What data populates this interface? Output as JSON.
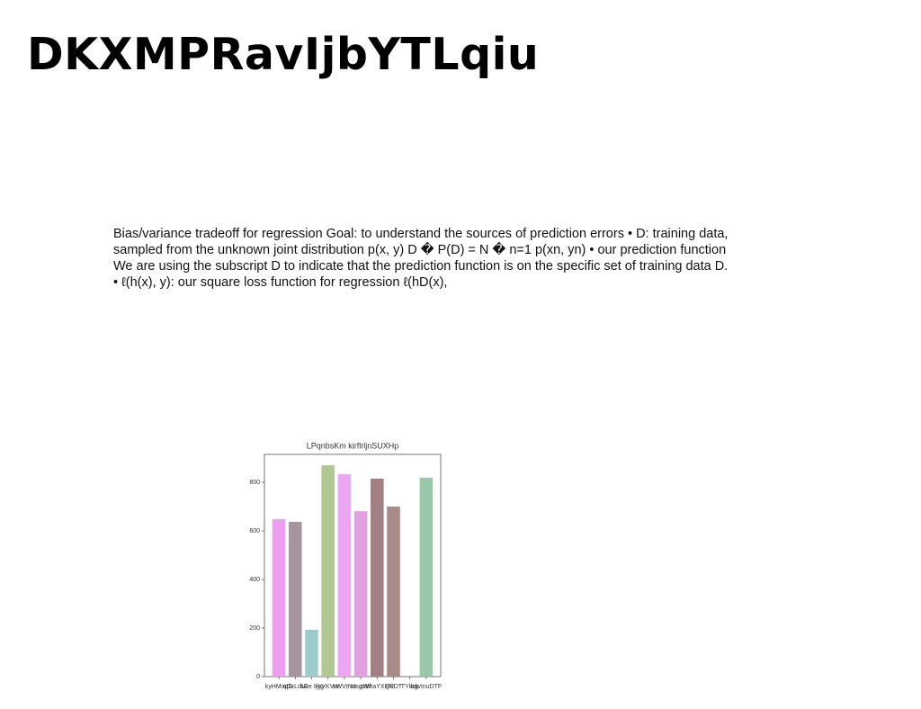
{
  "header": {
    "title": "DKXMPRavIjbYTLqiu"
  },
  "paragraph": "Bias/variance tradeoff for regression Goal: to understand the sources of prediction errors • D: training data, sampled from the unknown joint distribution p(x, y) D � P(D) = N � n=1 p(xn, yn) • our prediction function We are using the subscript D to indicate that the prediction function is on the specific set of training data D. • ℓ(h(x), y): our square loss function for regression ℓ(hD(x),",
  "chart_data": {
    "type": "bar",
    "title": "LPqnbsKm kirflrljnSUXHp",
    "categories": [
      "kyHMnqD",
      "qDxLrbA",
      "ADe IHg",
      "jyVKVre",
      "sWVtNo",
      "otsgzW",
      "zWhaYXQR",
      "HEDT",
      "TYkcb",
      "bgvInuDTF"
    ],
    "values": [
      648,
      637,
      193,
      870,
      833,
      681,
      815,
      700,
      0,
      819
    ],
    "colors": [
      "#ee9ef0",
      "#a6949f",
      "#9ccccc",
      "#b2c893",
      "#eda6f2",
      "#e3a0e0",
      "#a27f82",
      "#a88a86",
      "#cccccc",
      "#98c8a8"
    ],
    "ylim": [
      0,
      915
    ],
    "yticks": [
      0,
      200,
      400,
      600,
      800
    ],
    "grid": false
  }
}
